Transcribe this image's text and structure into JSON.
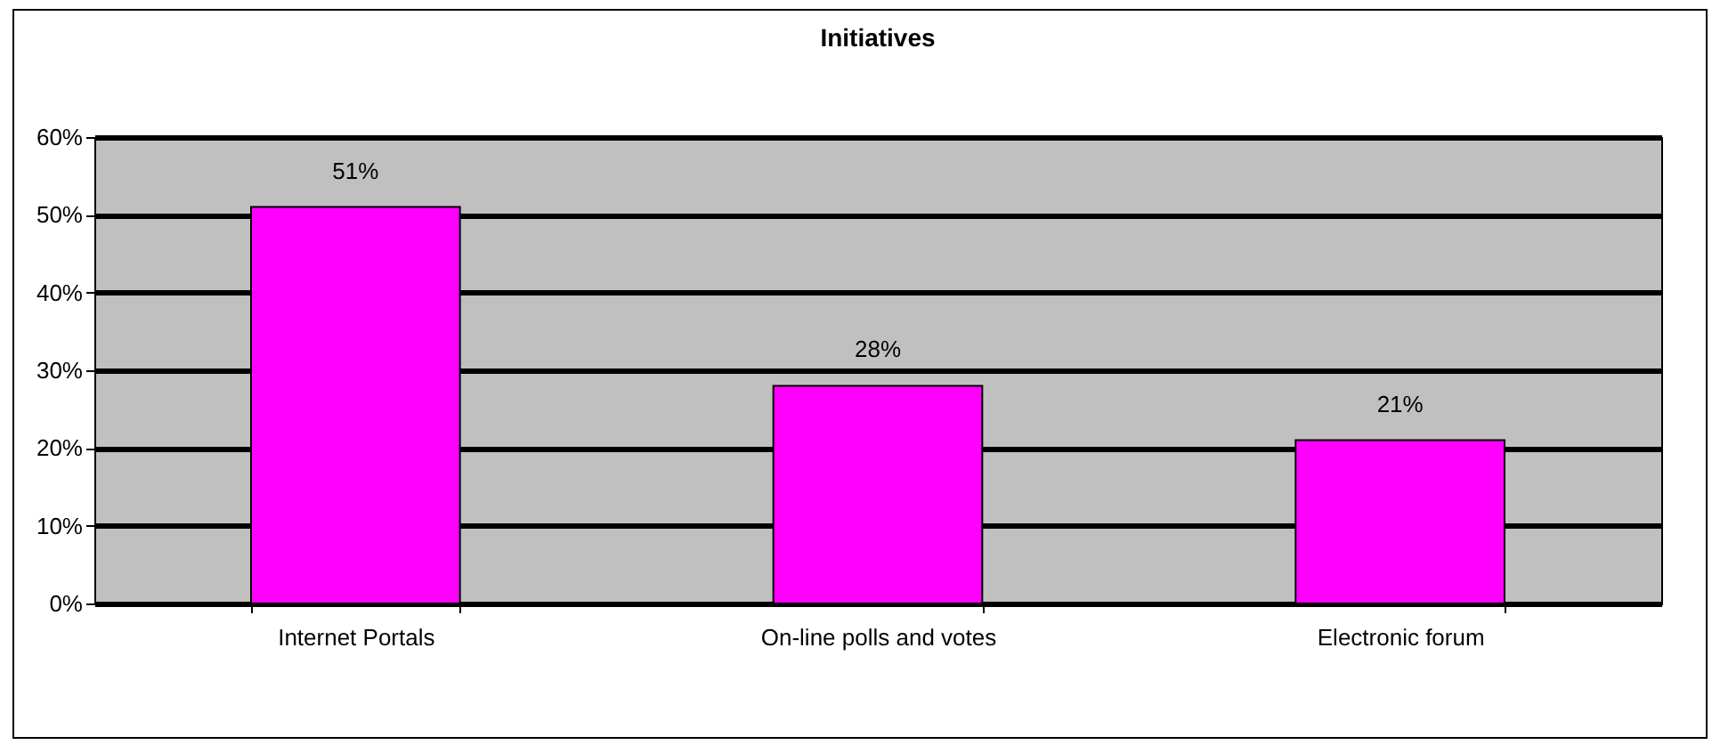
{
  "chart_data": {
    "type": "bar",
    "title": "Initiatives",
    "categories": [
      "Internet Portals",
      "On-line polls and votes",
      "Electronic forum"
    ],
    "values": [
      51,
      28,
      21
    ],
    "value_labels": [
      "51%",
      "28%",
      "21%"
    ],
    "color": "#ff00ff",
    "ylim": [
      0,
      60
    ],
    "yticks": [
      {
        "value": 0,
        "label": "0%"
      },
      {
        "value": 10,
        "label": "10%"
      },
      {
        "value": 20,
        "label": "20%"
      },
      {
        "value": 30,
        "label": "30%"
      },
      {
        "value": 40,
        "label": "40%"
      },
      {
        "value": 50,
        "label": "50%"
      },
      {
        "value": 60,
        "label": "60%"
      }
    ],
    "grid": "y"
  }
}
